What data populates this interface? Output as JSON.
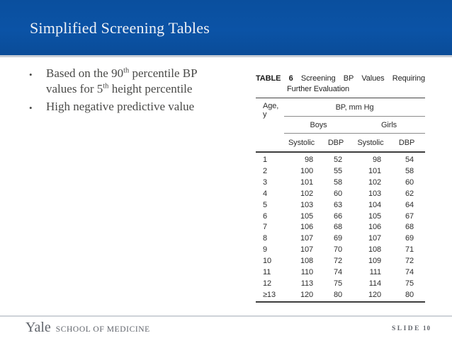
{
  "header": {
    "title": "Simplified Screening Tables"
  },
  "bullets": {
    "item1": {
      "part1": "Based on the 90",
      "sup1": "th",
      "part2": " percentile BP values for 5",
      "sup2": "th",
      "part3": " height percentile"
    },
    "item2": "High negative predictive value"
  },
  "table": {
    "label": "TABLE 6",
    "caption_line1": "Screening BP Values Requiring",
    "caption_line2": "Further Evaluation",
    "col_age": "Age, y",
    "col_bp": "BP, mm Hg",
    "group_boys": "Boys",
    "group_girls": "Girls",
    "sub_headers": [
      "Systolic",
      "DBP",
      "Systolic",
      "DBP"
    ],
    "rows": [
      [
        "1",
        "98",
        "52",
        "98",
        "54"
      ],
      [
        "2",
        "100",
        "55",
        "101",
        "58"
      ],
      [
        "3",
        "101",
        "58",
        "102",
        "60"
      ],
      [
        "4",
        "102",
        "60",
        "103",
        "62"
      ],
      [
        "5",
        "103",
        "63",
        "104",
        "64"
      ],
      [
        "6",
        "105",
        "66",
        "105",
        "67"
      ],
      [
        "7",
        "106",
        "68",
        "106",
        "68"
      ],
      [
        "8",
        "107",
        "69",
        "107",
        "69"
      ],
      [
        "9",
        "107",
        "70",
        "108",
        "71"
      ],
      [
        "10",
        "108",
        "72",
        "109",
        "72"
      ],
      [
        "11",
        "110",
        "74",
        "111",
        "74"
      ],
      [
        "12",
        "113",
        "75",
        "114",
        "75"
      ],
      [
        "≥13",
        "120",
        "80",
        "120",
        "80"
      ]
    ]
  },
  "footer": {
    "brand_primary": "Yale",
    "brand_secondary": "SCHOOL OF MEDICINE",
    "slide_label": "SLIDE",
    "slide_number": "10"
  },
  "colors": {
    "header_blue": "#0b53a6",
    "divider_gray": "#c9ced6",
    "body_text_gray": "#4a4a48",
    "footer_gray": "#61656c",
    "table_rule_dark": "#3d3d3d",
    "table_rule_light": "#8b8b8b"
  }
}
